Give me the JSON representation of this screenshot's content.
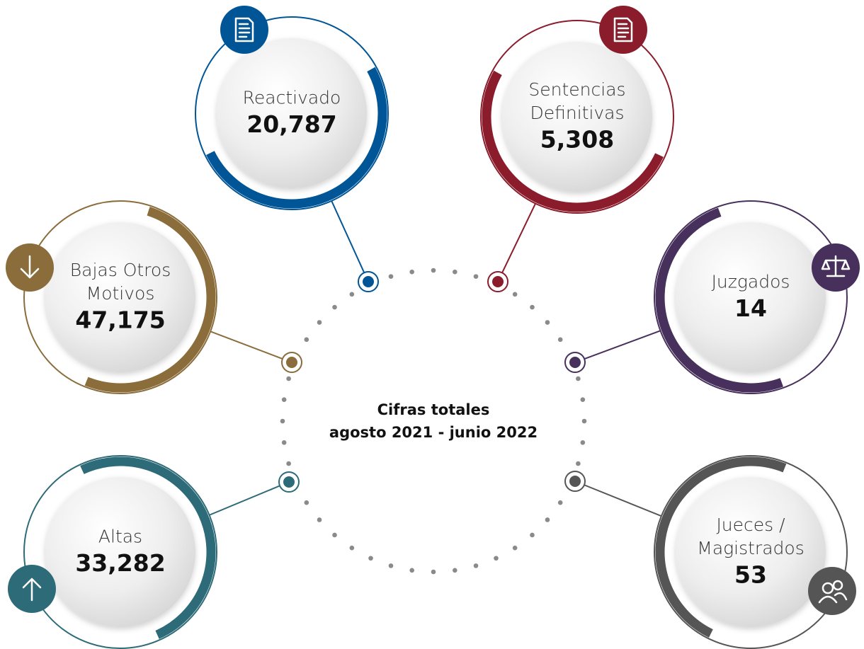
{
  "center": {
    "lines": [
      "Cifras totales",
      "agosto 2021 - junio 2022"
    ]
  },
  "nodes": [
    {
      "label_lines": [
        "Reactivado"
      ],
      "value": "20,787",
      "color": "#005596"
    },
    {
      "label_lines": [
        "Sentencias",
        "Definitivas"
      ],
      "value": "5,308",
      "color": "#8b1c2b"
    },
    {
      "label_lines": [
        "Bajas Otros",
        "Motivos"
      ],
      "value": "47,175",
      "color": "#8a6d3b"
    },
    {
      "label_lines": [
        "Juzgados"
      ],
      "value": "14",
      "color": "#47305c"
    },
    {
      "label_lines": [
        "Altas"
      ],
      "value": "33,282",
      "color": "#2e6b78"
    },
    {
      "label_lines": [
        "Jueces /",
        "Magistrados"
      ],
      "value": "53",
      "color": "#555555"
    }
  ]
}
